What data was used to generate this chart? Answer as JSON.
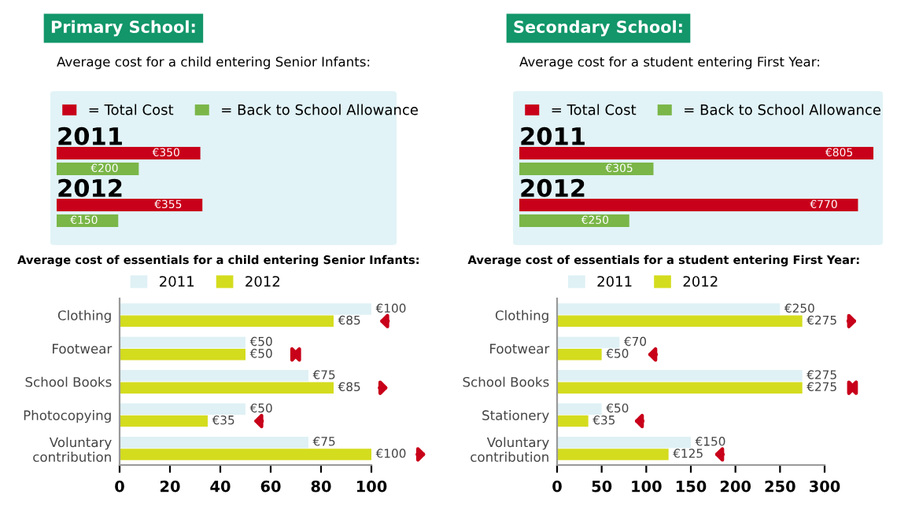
{
  "chart_data": [
    {
      "type": "bar",
      "orientation": "horizontal",
      "title": "Primary School:",
      "subtitle": "Average cost for a child entering Senior Infants:",
      "categories": [
        "2011",
        "2012"
      ],
      "legend": "top",
      "series": [
        {
          "name": "= Total Cost",
          "color": "#c8001a",
          "values": [
            350,
            355
          ],
          "value_labels": [
            "€350",
            "€355"
          ]
        },
        {
          "name": "= Back to School Allowance",
          "color": "#7ab648",
          "values": [
            200,
            150
          ],
          "value_labels": [
            "€200",
            "€150"
          ]
        }
      ]
    },
    {
      "type": "bar",
      "orientation": "horizontal",
      "title": "Secondary School:",
      "subtitle": "Average cost for a student entering First Year:",
      "categories": [
        "2011",
        "2012"
      ],
      "legend": "top",
      "series": [
        {
          "name": "= Total Cost",
          "color": "#c8001a",
          "values": [
            805,
            770
          ],
          "value_labels": [
            "€805",
            "€770"
          ]
        },
        {
          "name": "= Back to School Allowance",
          "color": "#7ab648",
          "values": [
            305,
            250
          ],
          "value_labels": [
            "€305",
            "€250"
          ]
        }
      ]
    },
    {
      "type": "bar",
      "orientation": "horizontal",
      "title": "Average cost of essentials for a child entering Senior Infants:",
      "categories": [
        "Clothing",
        "Footwear",
        "School Books",
        "Photocopying",
        "Voluntary\ncontribution"
      ],
      "legend": "top",
      "xlim": [
        0,
        100
      ],
      "xticks": [
        0,
        20,
        40,
        60,
        80,
        100
      ],
      "series": [
        {
          "name": "2011",
          "color": "#dff1f5",
          "values": [
            100,
            50,
            75,
            50,
            75
          ],
          "value_labels": [
            "€100",
            "€50",
            "€75",
            "€50",
            "€75"
          ]
        },
        {
          "name": "2012",
          "color": "#d4dc1e",
          "values": [
            85,
            50,
            85,
            35,
            100
          ],
          "value_labels": [
            "€85",
            "€50",
            "€85",
            "€35",
            "€100"
          ]
        }
      ]
    },
    {
      "type": "bar",
      "orientation": "horizontal",
      "title": "Average cost of essentials for a student entering First Year:",
      "categories": [
        "Clothing",
        "Footwear",
        "School Books",
        "Stationery",
        "Voluntary\ncontribution"
      ],
      "legend": "top",
      "xlim": [
        0,
        300
      ],
      "xticks": [
        0,
        50,
        100,
        150,
        200,
        250,
        300
      ],
      "series": [
        {
          "name": "2011",
          "color": "#dff1f5",
          "values": [
            250,
            70,
            275,
            50,
            150
          ],
          "value_labels": [
            "€250",
            "€70",
            "€275",
            "€50",
            "€150"
          ]
        },
        {
          "name": "2012",
          "color": "#d4dc1e",
          "values": [
            275,
            50,
            275,
            35,
            125
          ],
          "value_labels": [
            "€275",
            "€50",
            "€275",
            "€35",
            "€125"
          ]
        }
      ]
    }
  ]
}
